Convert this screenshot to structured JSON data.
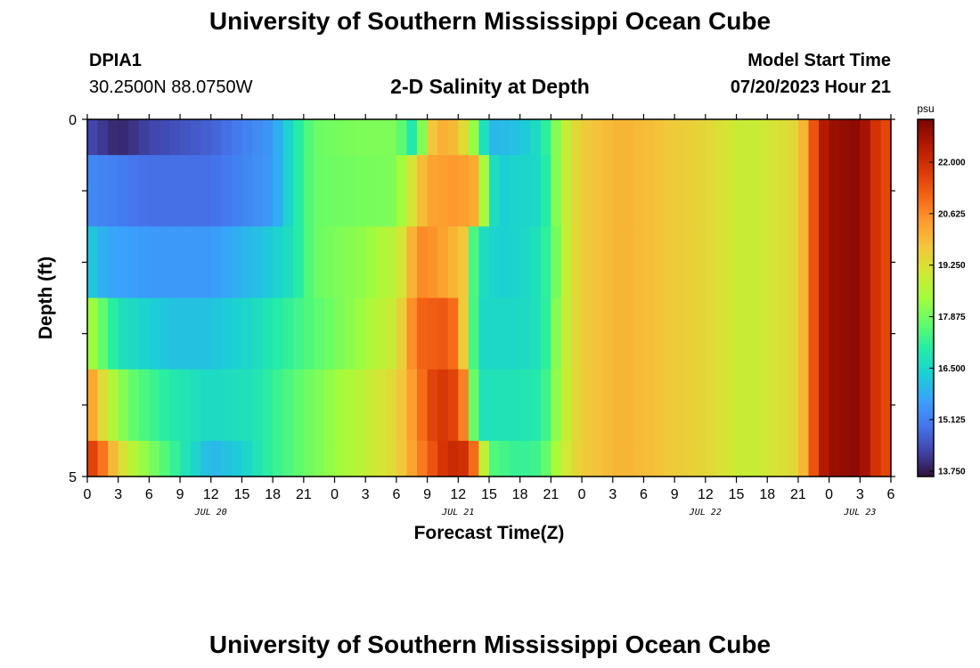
{
  "header": {
    "title": "University of Southern Mississippi Ocean Cube",
    "station": "DPIA1",
    "location": "30.2500N  88.0750W",
    "plot_title": "2-D Salinity at Depth",
    "model_start_label": "Model Start Time",
    "model_start_value": "07/20/2023 Hour 21"
  },
  "footer": {
    "title": "University of Southern Mississippi Ocean Cube"
  },
  "colors": {
    "scale": [
      "#30123b",
      "#4145ab",
      "#4675ed",
      "#39a2fc",
      "#1bcfd4",
      "#24eca6",
      "#61fc6c",
      "#a4fc3b",
      "#d1e834",
      "#f3c63a",
      "#fe9b2d",
      "#f36315",
      "#d93806",
      "#b11901",
      "#7a0403"
    ]
  },
  "chart_data": {
    "type": "heatmap",
    "title": "2-D Salinity at Depth",
    "xlabel": "Forecast Time(Z)",
    "ylabel": "Depth (ft)",
    "x_ticks": [
      "0",
      "3",
      "6",
      "9",
      "12",
      "15",
      "18",
      "21",
      "0",
      "3",
      "6",
      "9",
      "12",
      "15",
      "18",
      "21",
      "0",
      "3",
      "6",
      "9",
      "12",
      "15",
      "18",
      "21",
      "0",
      "3",
      "6"
    ],
    "date_labels": [
      {
        "label": "JUL 20",
        "hour": 12
      },
      {
        "label": "JUL 21",
        "hour": 36
      },
      {
        "label": "JUL 22",
        "hour": 60
      },
      {
        "label": "JUL 23",
        "hour": 75
      }
    ],
    "xlim_hours": [
      0,
      78
    ],
    "ylim_ft": [
      0,
      5
    ],
    "y_tick_labels": [
      "0",
      "5"
    ],
    "colorbar": {
      "unit": "psu",
      "min": 13.75,
      "max": 23.0,
      "tick_values": [
        13.75,
        15.125,
        16.5,
        17.875,
        19.25,
        20.625,
        22.0
      ],
      "tick_labels": [
        "13.750",
        "15.125",
        "16.500",
        "17.875",
        "19.250",
        "20.625",
        "22.000"
      ]
    },
    "depth_layers": [
      {
        "top": 0.0,
        "bottom": 0.5,
        "keys": [
          [
            0,
            14.5
          ],
          [
            3,
            14.0
          ],
          [
            6,
            14.4
          ],
          [
            12,
            14.8
          ],
          [
            18,
            15.6
          ],
          [
            20,
            16.8
          ],
          [
            22,
            17.8
          ],
          [
            26,
            18.0
          ],
          [
            30,
            18.0
          ],
          [
            32,
            16.6
          ],
          [
            33,
            19.5
          ],
          [
            35,
            20.2
          ],
          [
            37,
            19.0
          ],
          [
            38,
            17.5
          ],
          [
            39,
            16.0
          ],
          [
            42,
            16.2
          ],
          [
            44,
            16.8
          ],
          [
            45,
            17.5
          ],
          [
            46,
            18.6
          ],
          [
            48,
            19.6
          ],
          [
            52,
            20.0
          ],
          [
            60,
            19.4
          ],
          [
            64,
            18.8
          ],
          [
            69,
            19.4
          ],
          [
            70,
            20.5
          ],
          [
            71,
            22.0
          ],
          [
            72,
            22.6
          ],
          [
            75,
            22.8
          ],
          [
            76,
            22.2
          ],
          [
            77,
            21.4
          ],
          [
            78,
            21.5
          ]
        ]
      },
      {
        "top": 0.5,
        "bottom": 1.5,
        "keys": [
          [
            0,
            15.4
          ],
          [
            6,
            15.0
          ],
          [
            12,
            15.0
          ],
          [
            18,
            15.6
          ],
          [
            20,
            16.8
          ],
          [
            22,
            17.8
          ],
          [
            30,
            18.0
          ],
          [
            33,
            20.2
          ],
          [
            36,
            20.4
          ],
          [
            38,
            20.0
          ],
          [
            39,
            17.0
          ],
          [
            40,
            16.4
          ],
          [
            44,
            16.6
          ],
          [
            45,
            17.5
          ],
          [
            46,
            18.6
          ],
          [
            48,
            19.6
          ],
          [
            52,
            20.0
          ],
          [
            60,
            19.4
          ],
          [
            64,
            18.8
          ],
          [
            69,
            19.4
          ],
          [
            70,
            20.5
          ],
          [
            71,
            22.0
          ],
          [
            72,
            22.6
          ],
          [
            75,
            22.8
          ],
          [
            76,
            22.2
          ],
          [
            77,
            21.4
          ],
          [
            78,
            21.5
          ]
        ]
      },
      {
        "top": 1.5,
        "bottom": 2.5,
        "keys": [
          [
            0,
            16.4
          ],
          [
            2,
            15.8
          ],
          [
            6,
            15.6
          ],
          [
            12,
            15.6
          ],
          [
            17,
            16.2
          ],
          [
            20,
            16.8
          ],
          [
            22,
            17.8
          ],
          [
            27,
            18.2
          ],
          [
            30,
            18.8
          ],
          [
            31,
            19.4
          ],
          [
            32,
            20.6
          ],
          [
            34,
            20.4
          ],
          [
            36,
            19.8
          ],
          [
            36.8,
            19.6
          ],
          [
            37.4,
            17.6
          ],
          [
            38,
            16.8
          ],
          [
            40,
            16.4
          ],
          [
            43,
            16.6
          ],
          [
            44.6,
            17.2
          ],
          [
            45.5,
            17.9
          ],
          [
            46,
            18.6
          ],
          [
            48,
            19.6
          ],
          [
            52,
            20.0
          ],
          [
            60,
            19.4
          ],
          [
            64,
            18.8
          ],
          [
            69,
            19.4
          ],
          [
            70,
            20.5
          ],
          [
            71,
            22.0
          ],
          [
            72,
            22.6
          ],
          [
            75,
            22.8
          ],
          [
            76,
            22.2
          ],
          [
            77,
            21.4
          ],
          [
            78,
            21.5
          ]
        ]
      },
      {
        "top": 2.5,
        "bottom": 3.5,
        "keys": [
          [
            0,
            18.6
          ],
          [
            1,
            18.0
          ],
          [
            3,
            16.8
          ],
          [
            8,
            16.2
          ],
          [
            12,
            16.2
          ],
          [
            16,
            16.6
          ],
          [
            20,
            17.3
          ],
          [
            26,
            18.2
          ],
          [
            30,
            19.0
          ],
          [
            31,
            20.0
          ],
          [
            32,
            21.0
          ],
          [
            35,
            21.2
          ],
          [
            36,
            20.6
          ],
          [
            36.6,
            19.4
          ],
          [
            37.4,
            17.6
          ],
          [
            38,
            16.6
          ],
          [
            42,
            16.6
          ],
          [
            44,
            16.8
          ],
          [
            45,
            17.5
          ],
          [
            46,
            18.6
          ],
          [
            48,
            19.6
          ],
          [
            52,
            20.0
          ],
          [
            60,
            19.4
          ],
          [
            64,
            18.8
          ],
          [
            69,
            19.4
          ],
          [
            70,
            20.5
          ],
          [
            71,
            22.0
          ],
          [
            72,
            22.6
          ],
          [
            75,
            22.8
          ],
          [
            76,
            22.2
          ],
          [
            77,
            21.4
          ],
          [
            78,
            21.5
          ]
        ]
      },
      {
        "top": 3.5,
        "bottom": 4.5,
        "keys": [
          [
            0,
            20.5
          ],
          [
            1,
            19.8
          ],
          [
            2,
            18.8
          ],
          [
            4,
            17.8
          ],
          [
            8,
            17.0
          ],
          [
            12,
            16.6
          ],
          [
            16,
            16.8
          ],
          [
            20,
            17.6
          ],
          [
            26,
            18.6
          ],
          [
            30,
            19.4
          ],
          [
            32,
            20.6
          ],
          [
            34,
            21.8
          ],
          [
            36,
            21.4
          ],
          [
            36.8,
            20.2
          ],
          [
            37.5,
            17.8
          ],
          [
            38,
            16.8
          ],
          [
            41,
            16.8
          ],
          [
            44,
            17.0
          ],
          [
            45,
            17.7
          ],
          [
            46,
            18.6
          ],
          [
            48,
            19.6
          ],
          [
            52,
            20.0
          ],
          [
            60,
            19.4
          ],
          [
            64,
            18.8
          ],
          [
            69,
            19.4
          ],
          [
            70,
            20.5
          ],
          [
            71,
            22.0
          ],
          [
            72,
            22.6
          ],
          [
            75,
            22.8
          ],
          [
            76,
            22.2
          ],
          [
            77,
            21.4
          ],
          [
            78,
            21.5
          ]
        ]
      },
      {
        "top": 4.5,
        "bottom": 5.0,
        "keys": [
          [
            0,
            21.8
          ],
          [
            1,
            21.2
          ],
          [
            2,
            20.4
          ],
          [
            3,
            19.4
          ],
          [
            5,
            18.4
          ],
          [
            8,
            17.4
          ],
          [
            12,
            16.0
          ],
          [
            15,
            16.4
          ],
          [
            17,
            17.0
          ],
          [
            20,
            17.6
          ],
          [
            26,
            18.6
          ],
          [
            30,
            19.4
          ],
          [
            33,
            21.0
          ],
          [
            35,
            22.0
          ],
          [
            37,
            21.8
          ],
          [
            38,
            20.0
          ],
          [
            39,
            17.6
          ],
          [
            42,
            17.2
          ],
          [
            44,
            17.4
          ],
          [
            45,
            18.0
          ],
          [
            46,
            18.8
          ],
          [
            48,
            19.6
          ],
          [
            52,
            20.0
          ],
          [
            60,
            19.4
          ],
          [
            64,
            18.8
          ],
          [
            69,
            19.4
          ],
          [
            70,
            20.5
          ],
          [
            71,
            22.0
          ],
          [
            72,
            22.6
          ],
          [
            75,
            22.8
          ],
          [
            76,
            22.2
          ],
          [
            77,
            21.4
          ],
          [
            78,
            21.5
          ]
        ]
      }
    ]
  }
}
